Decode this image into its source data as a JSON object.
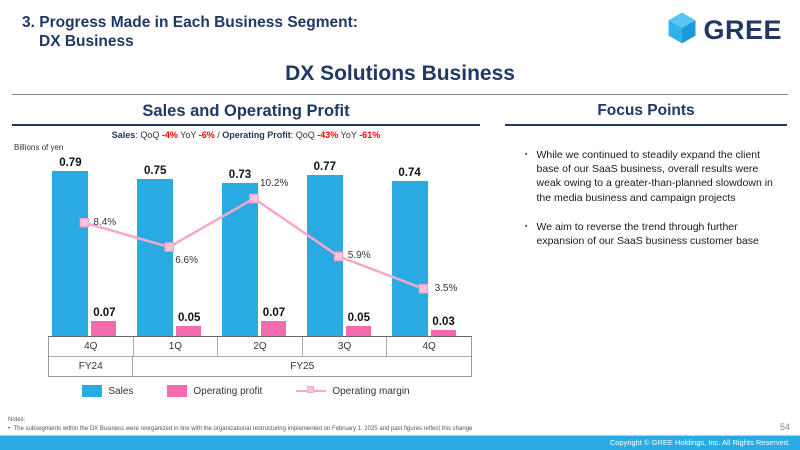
{
  "header": {
    "title_line1": "3. Progress Made in Each Business Segment:",
    "title_line2": "DX Business",
    "logo_text": "GREE"
  },
  "main_title": "DX Solutions Business",
  "left": {
    "heading": "Sales and Operating Profit",
    "unit_label": "Billions of yen",
    "stats_segments": [
      {
        "text": "Sales",
        "style": "label"
      },
      {
        "text": ": QoQ ",
        "style": "plain"
      },
      {
        "text": "-4%",
        "style": "red"
      },
      {
        "text": " YoY ",
        "style": "plain"
      },
      {
        "text": "-6%",
        "style": "red"
      },
      {
        "text": " / ",
        "style": "plain"
      },
      {
        "text": "Operating Profit",
        "style": "label"
      },
      {
        "text": ": QoQ ",
        "style": "plain"
      },
      {
        "text": "-43%",
        "style": "red"
      },
      {
        "text": " YoY ",
        "style": "plain"
      },
      {
        "text": "-61%",
        "style": "red"
      }
    ]
  },
  "chart_data": {
    "type": "bar",
    "categories": [
      "4Q",
      "1Q",
      "2Q",
      "3Q",
      "4Q"
    ],
    "fiscal_groups": [
      {
        "label": "FY24",
        "span": 1
      },
      {
        "label": "FY25",
        "span": 4
      }
    ],
    "series": [
      {
        "name": "Sales",
        "type": "bar",
        "color": "#29ABE2",
        "values": [
          0.79,
          0.75,
          0.73,
          0.77,
          0.74
        ]
      },
      {
        "name": "Operating profit",
        "type": "bar",
        "color": "#F16BAE",
        "values": [
          0.07,
          0.05,
          0.07,
          0.05,
          0.03
        ]
      },
      {
        "name": "Operating margin",
        "type": "line",
        "color": "#F5A8CC",
        "unit": "%",
        "values": [
          8.4,
          6.6,
          10.2,
          5.9,
          3.5
        ]
      }
    ],
    "ylabel": "Billions of yen",
    "sales_axis_max": 0.87,
    "margin_axis_max": 13.5,
    "grid": false,
    "legend_position": "bottom"
  },
  "focus": {
    "heading": "Focus Points",
    "bullets": [
      "While we continued to steadily expand the client base of our SaaS business, overall results were weak owing to a greater-than-planned slowdown in the media business and campaign projects",
      "We aim to reverse the trend through further expansion of our SaaS business customer base"
    ]
  },
  "icons": {
    "bullet": "▪",
    "note_bullet": "•"
  },
  "footer": {
    "notes_label": "Notes:",
    "note": "The subsegments within the DX Business were reorganized in line with the organizational restructuring implemented on February 1, 2025 and past figures reflect this change",
    "page_number": "54",
    "copyright": "Copyright © GREE Holdings, Inc. All Rights Reserved."
  }
}
